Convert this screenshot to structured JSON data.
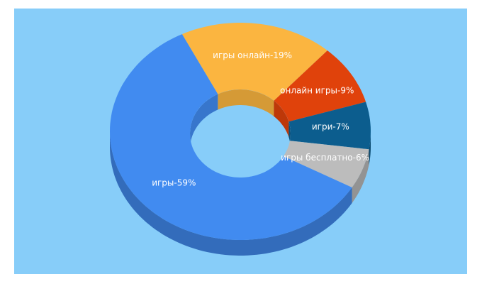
{
  "chart_data": {
    "type": "pie",
    "categories": [
      "игры онлайн",
      "онлайн игры",
      "игри",
      "игры бесплатно",
      "игры"
    ],
    "values": [
      19,
      9,
      7,
      6,
      59
    ],
    "value_labels": [
      "игры онлайн-19%",
      "онлайн игры-9%",
      "игри-7%",
      "игры бесплатно-6%",
      "игры-59%"
    ],
    "colors": [
      "#fbb540",
      "#e0420b",
      "#0c5d8e",
      "#bcbcbc",
      "#418bf0"
    ]
  }
}
